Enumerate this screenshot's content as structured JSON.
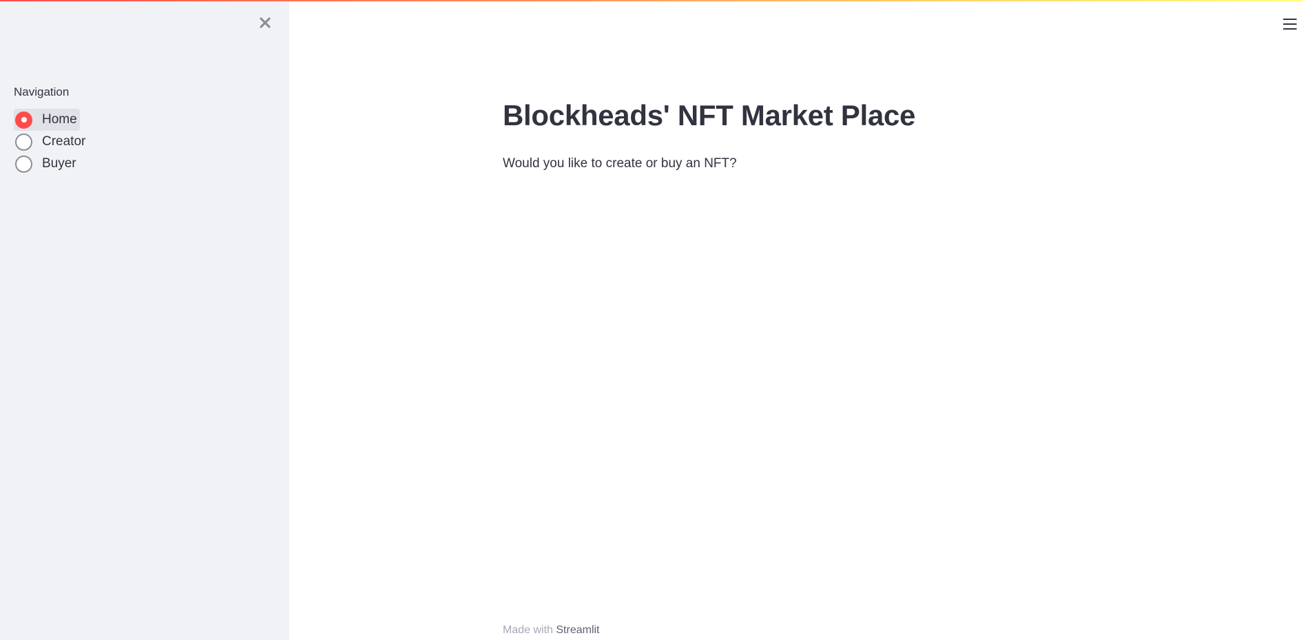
{
  "sidebar": {
    "close_icon": "close-icon",
    "navigation_label": "Navigation",
    "options": [
      {
        "label": "Home",
        "selected": true
      },
      {
        "label": "Creator",
        "selected": false
      },
      {
        "label": "Buyer",
        "selected": false
      }
    ]
  },
  "header": {
    "menu_icon": "hamburger-menu-icon"
  },
  "main": {
    "title": "Blockheads' NFT Market Place",
    "subtitle": "Would you like to create or buy an NFT?"
  },
  "footer": {
    "made_with": "Made with",
    "link_label": "Streamlit"
  },
  "colors": {
    "accent": "#ff4b4b",
    "sidebar_bg": "#f0f2f6",
    "text": "#31333f"
  }
}
